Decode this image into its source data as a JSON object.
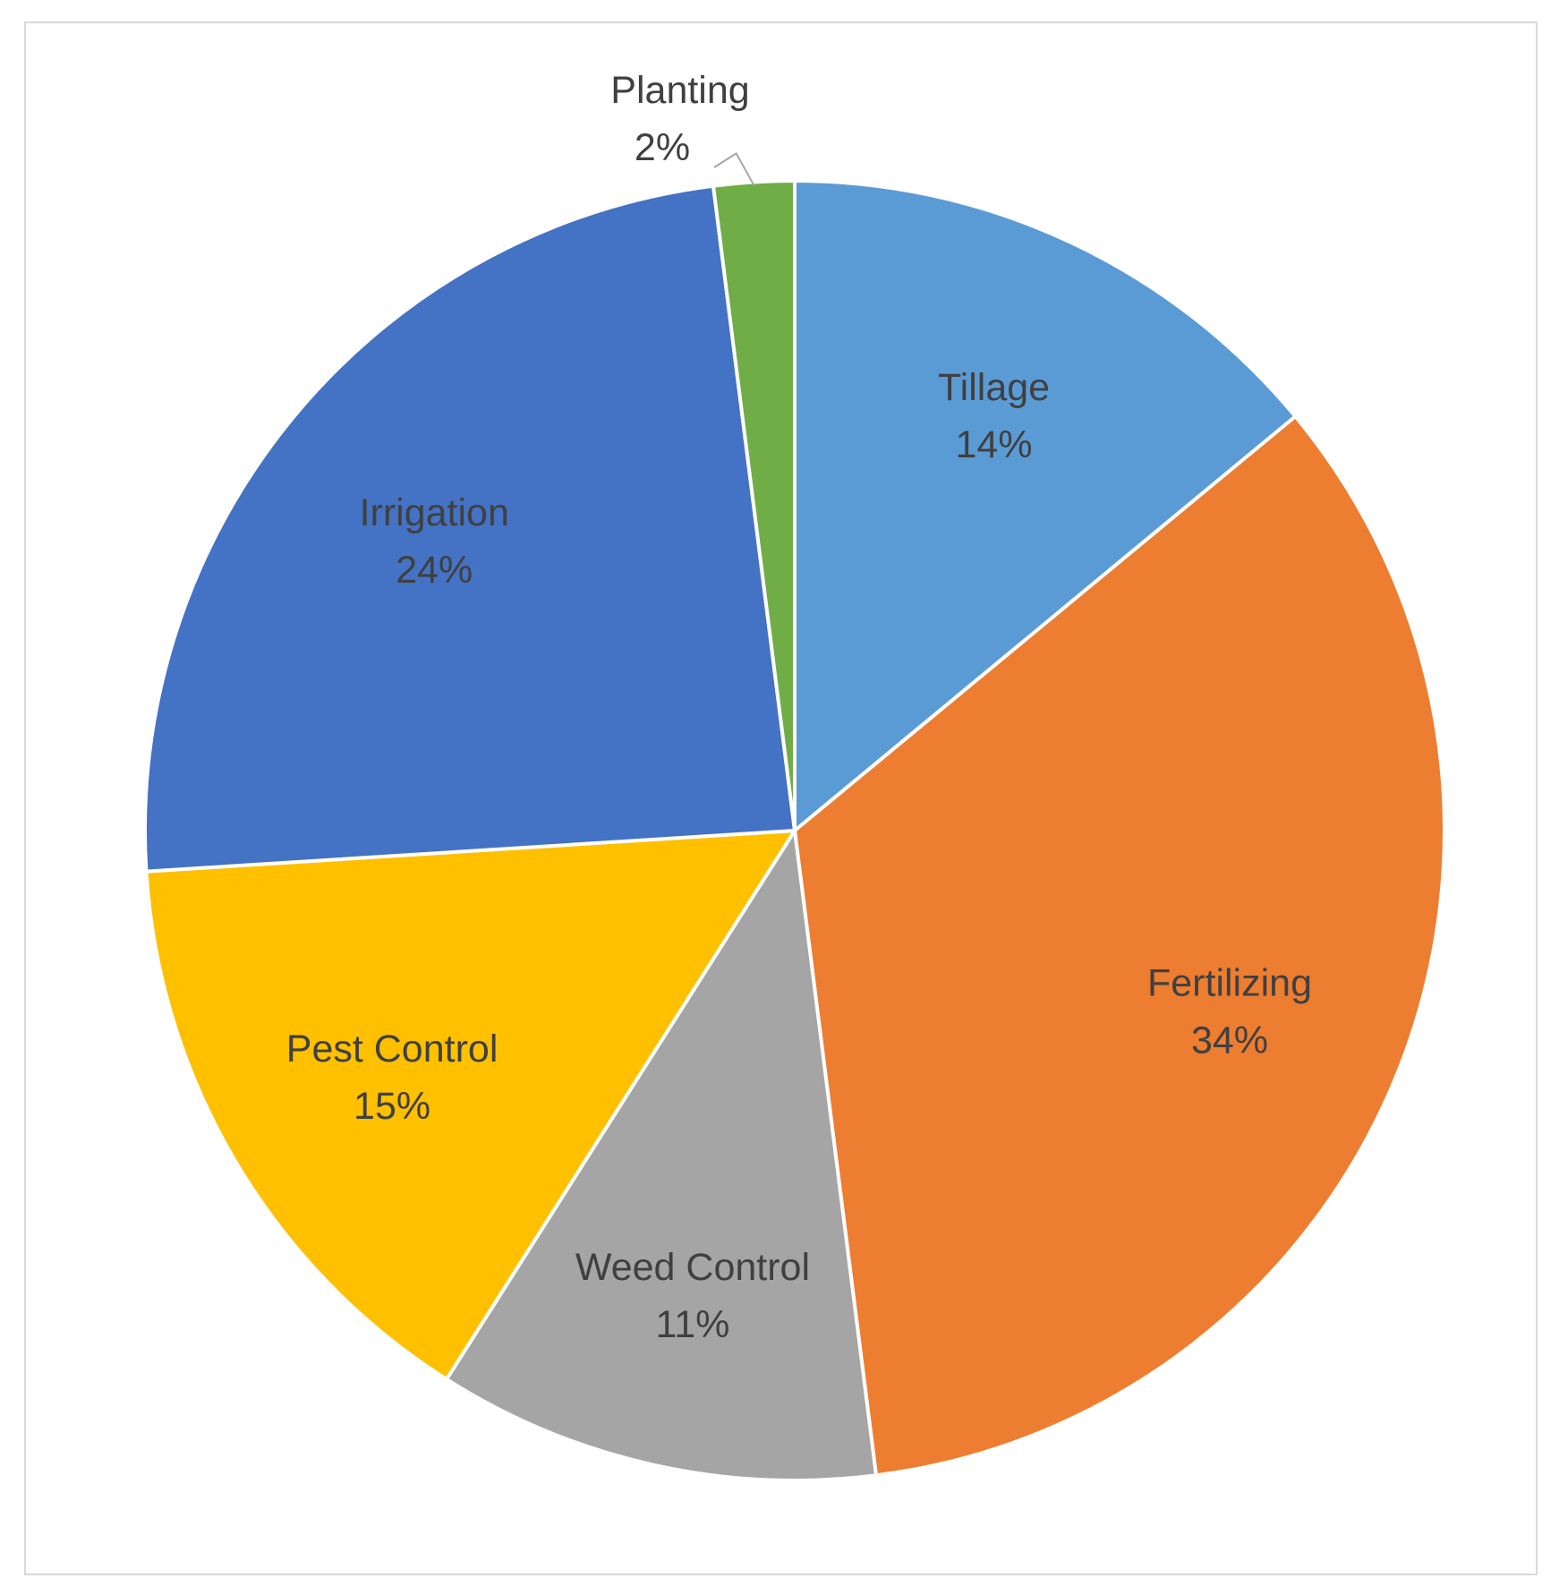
{
  "chart_data": {
    "type": "pie",
    "title": "",
    "start_angle_deg": 0,
    "direction": "clockwise",
    "slices": [
      {
        "label": "Tillage",
        "value": 14,
        "value_label": "14%",
        "color": "#5B9BD5"
      },
      {
        "label": "Fertilizing",
        "value": 34,
        "value_label": "34%",
        "color": "#ED7D31"
      },
      {
        "label": "Weed Control",
        "value": 11,
        "value_label": "11%",
        "color": "#A5A5A5"
      },
      {
        "label": "Pest Control",
        "value": 15,
        "value_label": "15%",
        "color": "#FFC000"
      },
      {
        "label": "Irrigation",
        "value": 24,
        "value_label": "24%",
        "color": "#4472C4"
      },
      {
        "label": "Planting",
        "value": 2,
        "value_label": "2%",
        "color": "#70AD47"
      }
    ],
    "legend": "none",
    "data_labels": "category and percentage"
  }
}
